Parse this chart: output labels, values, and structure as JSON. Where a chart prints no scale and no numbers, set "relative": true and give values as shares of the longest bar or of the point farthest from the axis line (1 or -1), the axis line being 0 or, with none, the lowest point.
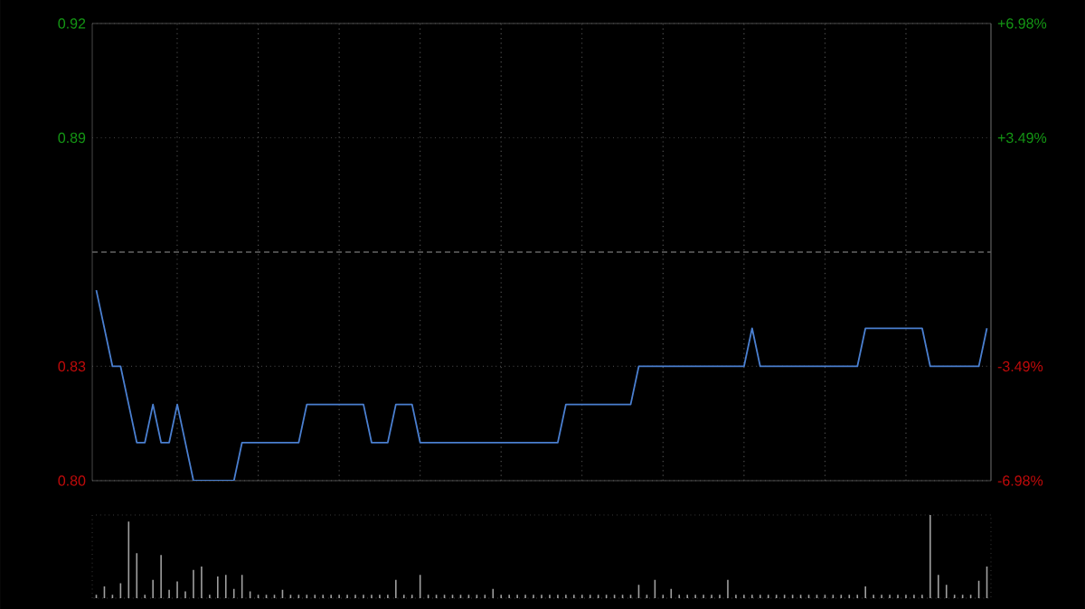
{
  "chart_data": [
    {
      "type": "line",
      "categories": [
        null,
        null,
        null,
        null,
        null,
        null,
        null,
        null,
        null,
        null,
        null,
        null,
        null,
        null,
        null,
        null,
        null,
        null,
        null,
        null,
        null,
        null,
        null,
        null,
        null,
        null,
        null,
        null,
        null,
        null,
        null,
        null,
        null,
        null,
        null,
        null,
        null,
        null,
        null,
        null,
        null,
        null,
        null,
        null,
        null,
        null,
        null,
        null,
        null,
        null,
        null,
        null,
        null,
        null,
        null,
        null,
        null,
        null,
        null,
        null,
        null,
        null,
        null,
        null,
        null,
        null,
        null,
        null,
        null,
        null,
        null,
        null,
        null,
        null,
        null,
        null,
        null,
        null,
        null,
        null,
        null,
        null,
        null,
        null,
        null,
        null,
        null,
        null,
        null,
        null,
        null,
        null,
        null,
        null,
        null,
        null,
        null,
        null,
        null,
        null,
        null,
        null,
        null,
        null,
        null,
        null,
        null,
        null,
        null,
        null,
        null
      ],
      "series": [
        {
          "color": "#4a7fd0",
          "values": [
            0.85,
            0.84,
            0.83,
            0.83,
            0.82,
            0.81,
            0.81,
            0.82,
            0.81,
            0.81,
            0.82,
            0.81,
            0.8,
            0.8,
            0.8,
            0.8,
            0.8,
            0.8,
            0.81,
            0.81,
            0.81,
            0.81,
            0.81,
            0.81,
            0.81,
            0.81,
            0.82,
            0.82,
            0.82,
            0.82,
            0.82,
            0.82,
            0.82,
            0.82,
            0.81,
            0.81,
            0.81,
            0.82,
            0.82,
            0.82,
            0.81,
            0.81,
            0.81,
            0.81,
            0.81,
            0.81,
            0.81,
            0.81,
            0.81,
            0.81,
            0.81,
            0.81,
            0.81,
            0.81,
            0.81,
            0.81,
            0.81,
            0.81,
            0.82,
            0.82,
            0.82,
            0.82,
            0.82,
            0.82,
            0.82,
            0.82,
            0.82,
            0.83,
            0.83,
            0.83,
            0.83,
            0.83,
            0.83,
            0.83,
            0.83,
            0.83,
            0.83,
            0.83,
            0.83,
            0.83,
            0.83,
            0.84,
            0.83,
            0.83,
            0.83,
            0.83,
            0.83,
            0.83,
            0.83,
            0.83,
            0.83,
            0.83,
            0.83,
            0.83,
            0.83,
            0.84,
            0.84,
            0.84,
            0.84,
            0.84,
            0.84,
            0.84,
            0.84,
            0.83,
            0.83,
            0.83,
            0.83,
            0.83,
            0.83,
            0.83,
            0.84
          ]
        }
      ],
      "ylim": [
        0.8,
        0.92
      ],
      "yticks": [
        {
          "value": 0.8,
          "label": "0.80"
        },
        {
          "value": 0.83,
          "label": "0.83"
        },
        {
          "value": 0.89,
          "label": "0.89"
        },
        {
          "value": 0.92,
          "label": "0.92"
        }
      ],
      "y2lim": [
        -6.98,
        6.98
      ],
      "y2ticks": [
        {
          "value": -6.98,
          "label": "-6.98%"
        },
        {
          "value": -3.49,
          "label": "-3.49%"
        },
        {
          "value": 3.49,
          "label": "+3.49%"
        },
        {
          "value": 6.98,
          "label": "+6.98%"
        }
      ],
      "ref_lines": [
        {
          "axis": "y",
          "value": 0.86,
          "line_style": "dashed"
        }
      ],
      "grid": true,
      "line_style": "solid"
    },
    {
      "type": "bar",
      "relative": true,
      "categories": [
        null,
        null,
        null,
        null,
        null,
        null,
        null,
        null,
        null,
        null,
        null,
        null,
        null,
        null,
        null,
        null,
        null,
        null,
        null,
        null,
        null,
        null,
        null,
        null,
        null,
        null,
        null,
        null,
        null,
        null,
        null,
        null,
        null,
        null,
        null,
        null,
        null,
        null,
        null,
        null,
        null,
        null,
        null,
        null,
        null,
        null,
        null,
        null,
        null,
        null,
        null,
        null,
        null,
        null,
        null,
        null,
        null,
        null,
        null,
        null,
        null,
        null,
        null,
        null,
        null,
        null,
        null,
        null,
        null,
        null,
        null,
        null,
        null,
        null,
        null,
        null,
        null,
        null,
        null,
        null,
        null,
        null,
        null,
        null,
        null,
        null,
        null,
        null,
        null,
        null,
        null,
        null,
        null,
        null,
        null,
        null,
        null,
        null,
        null,
        null,
        null,
        null,
        null,
        null,
        null,
        null,
        null,
        null,
        null,
        null,
        null
      ],
      "values": [
        0.04,
        0.14,
        0.04,
        0.18,
        0.92,
        0.54,
        0.04,
        0.22,
        0.52,
        0.1,
        0.2,
        0.08,
        0.34,
        0.38,
        0.04,
        0.26,
        0.28,
        0.11,
        0.28,
        0.08,
        0.04,
        0.04,
        0.04,
        0.1,
        0.04,
        0.04,
        0.04,
        0.04,
        0.04,
        0.04,
        0.04,
        0.04,
        0.04,
        0.04,
        0.04,
        0.04,
        0.04,
        0.22,
        0.04,
        0.04,
        0.28,
        0.04,
        0.04,
        0.04,
        0.04,
        0.04,
        0.04,
        0.04,
        0.04,
        0.11,
        0.04,
        0.04,
        0.04,
        0.04,
        0.04,
        0.04,
        0.04,
        0.04,
        0.04,
        0.04,
        0.04,
        0.04,
        0.04,
        0.04,
        0.04,
        0.04,
        0.04,
        0.16,
        0.04,
        0.22,
        0.04,
        0.11,
        0.04,
        0.04,
        0.04,
        0.04,
        0.04,
        0.04,
        0.22,
        0.04,
        0.04,
        0.04,
        0.04,
        0.04,
        0.04,
        0.04,
        0.04,
        0.04,
        0.04,
        0.04,
        0.04,
        0.04,
        0.04,
        0.04,
        0.04,
        0.14,
        0.04,
        0.04,
        0.04,
        0.04,
        0.04,
        0.04,
        0.04,
        1,
        0.28,
        0.16,
        0.04,
        0.04,
        0.04,
        0.21,
        0.38
      ],
      "color": "#a0a0a0"
    }
  ]
}
